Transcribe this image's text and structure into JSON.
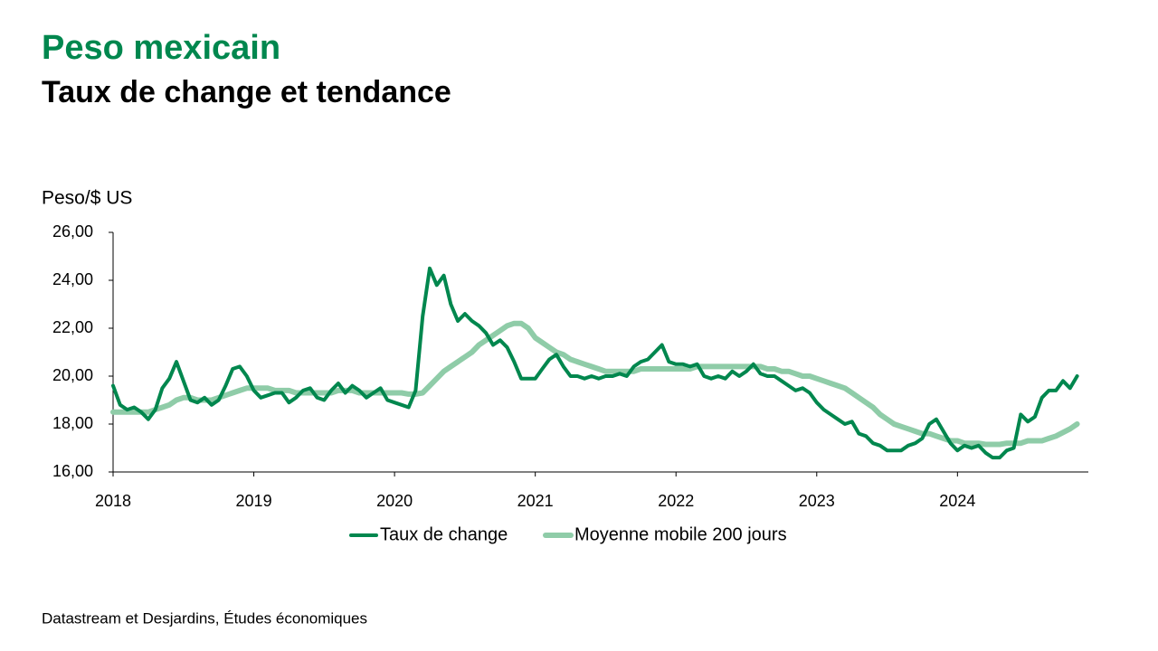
{
  "chart_data": {
    "type": "line",
    "title": "Peso mexicain",
    "subtitle": "Taux de change et tendance",
    "y_label": "Peso/$ US",
    "source": "Datastream et Desjardins, Études économiques",
    "legend": "bottom",
    "grid": false,
    "xlim": [
      2018,
      2024.93
    ],
    "xticks": [
      2018,
      2019,
      2020,
      2021,
      2022,
      2023,
      2024
    ],
    "ylim": [
      16,
      26
    ],
    "yticks": [
      {
        "value": 16,
        "label": "16,00"
      },
      {
        "value": 18,
        "label": "18,00"
      },
      {
        "value": 20,
        "label": "20,00"
      },
      {
        "value": 22,
        "label": "22,00"
      },
      {
        "value": 24,
        "label": "24,00"
      },
      {
        "value": 26,
        "label": "26,00"
      }
    ],
    "x": [
      2018.0,
      2018.05,
      2018.1,
      2018.15,
      2018.2,
      2018.25,
      2018.3,
      2018.35,
      2018.4,
      2018.45,
      2018.5,
      2018.55,
      2018.6,
      2018.65,
      2018.7,
      2018.75,
      2018.8,
      2018.85,
      2018.9,
      2018.95,
      2019.0,
      2019.05,
      2019.1,
      2019.15,
      2019.2,
      2019.25,
      2019.3,
      2019.35,
      2019.4,
      2019.45,
      2019.5,
      2019.55,
      2019.6,
      2019.65,
      2019.7,
      2019.75,
      2019.8,
      2019.85,
      2019.9,
      2019.95,
      2020.0,
      2020.05,
      2020.1,
      2020.15,
      2020.2,
      2020.25,
      2020.3,
      2020.35,
      2020.4,
      2020.45,
      2020.5,
      2020.55,
      2020.6,
      2020.65,
      2020.7,
      2020.75,
      2020.8,
      2020.85,
      2020.9,
      2020.95,
      2021.0,
      2021.05,
      2021.1,
      2021.15,
      2021.2,
      2021.25,
      2021.3,
      2021.35,
      2021.4,
      2021.45,
      2021.5,
      2021.55,
      2021.6,
      2021.65,
      2021.7,
      2021.75,
      2021.8,
      2021.85,
      2021.9,
      2021.95,
      2022.0,
      2022.05,
      2022.1,
      2022.15,
      2022.2,
      2022.25,
      2022.3,
      2022.35,
      2022.4,
      2022.45,
      2022.5,
      2022.55,
      2022.6,
      2022.65,
      2022.7,
      2022.75,
      2022.8,
      2022.85,
      2022.9,
      2022.95,
      2023.0,
      2023.05,
      2023.1,
      2023.15,
      2023.2,
      2023.25,
      2023.3,
      2023.35,
      2023.4,
      2023.45,
      2023.5,
      2023.55,
      2023.6,
      2023.65,
      2023.7,
      2023.75,
      2023.8,
      2023.85,
      2023.9,
      2023.95,
      2024.0,
      2024.05,
      2024.1,
      2024.15,
      2024.2,
      2024.25,
      2024.3,
      2024.35,
      2024.4,
      2024.45,
      2024.5,
      2024.55,
      2024.6,
      2024.65,
      2024.7,
      2024.75,
      2024.8,
      2024.85
    ],
    "series": [
      {
        "name": "Taux de change",
        "color": "#00874e",
        "width": 4,
        "values": [
          19.6,
          18.8,
          18.6,
          18.7,
          18.5,
          18.2,
          18.6,
          19.5,
          19.9,
          20.6,
          19.8,
          19.0,
          18.9,
          19.1,
          18.8,
          19.0,
          19.6,
          20.3,
          20.4,
          20.0,
          19.4,
          19.1,
          19.2,
          19.3,
          19.3,
          18.9,
          19.1,
          19.4,
          19.5,
          19.1,
          19.0,
          19.4,
          19.7,
          19.3,
          19.6,
          19.4,
          19.1,
          19.3,
          19.5,
          19.0,
          18.9,
          18.8,
          18.7,
          19.4,
          22.5,
          24.5,
          23.8,
          24.2,
          23.0,
          22.3,
          22.6,
          22.3,
          22.1,
          21.8,
          21.3,
          21.5,
          21.2,
          20.6,
          19.9,
          19.9,
          19.9,
          20.3,
          20.7,
          20.9,
          20.4,
          20.0,
          20.0,
          19.9,
          20.0,
          19.9,
          20.0,
          20.0,
          20.1,
          20.0,
          20.4,
          20.6,
          20.7,
          21.0,
          21.3,
          20.6,
          20.5,
          20.5,
          20.4,
          20.5,
          20.0,
          19.9,
          20.0,
          19.9,
          20.2,
          20.0,
          20.2,
          20.5,
          20.1,
          20.0,
          20.0,
          19.8,
          19.6,
          19.4,
          19.5,
          19.3,
          18.9,
          18.6,
          18.4,
          18.2,
          18.0,
          18.1,
          17.6,
          17.5,
          17.2,
          17.1,
          16.9,
          16.9,
          16.9,
          17.1,
          17.2,
          17.4,
          18.0,
          18.2,
          17.7,
          17.2,
          16.9,
          17.1,
          17.0,
          17.1,
          16.8,
          16.6,
          16.6,
          16.9,
          17.0,
          18.4,
          18.1,
          18.3,
          19.1,
          19.4,
          19.4,
          19.8,
          19.5,
          20.0
        ]
      },
      {
        "name": "Moyenne mobile 200 jours",
        "color": "#8fcca8",
        "width": 6,
        "values": [
          18.5,
          18.5,
          18.5,
          18.5,
          18.5,
          18.5,
          18.6,
          18.7,
          18.8,
          19.0,
          19.1,
          19.1,
          19.0,
          19.0,
          19.0,
          19.1,
          19.2,
          19.3,
          19.4,
          19.5,
          19.5,
          19.5,
          19.5,
          19.4,
          19.4,
          19.4,
          19.3,
          19.3,
          19.3,
          19.3,
          19.3,
          19.3,
          19.4,
          19.4,
          19.4,
          19.3,
          19.3,
          19.3,
          19.3,
          19.3,
          19.3,
          19.3,
          19.25,
          19.25,
          19.3,
          19.6,
          19.9,
          20.2,
          20.4,
          20.6,
          20.8,
          21.0,
          21.3,
          21.5,
          21.7,
          21.9,
          22.1,
          22.2,
          22.2,
          22.0,
          21.6,
          21.4,
          21.2,
          21.0,
          20.9,
          20.7,
          20.6,
          20.5,
          20.4,
          20.3,
          20.2,
          20.2,
          20.2,
          20.2,
          20.2,
          20.3,
          20.3,
          20.3,
          20.3,
          20.3,
          20.3,
          20.3,
          20.3,
          20.4,
          20.4,
          20.4,
          20.4,
          20.4,
          20.4,
          20.4,
          20.4,
          20.4,
          20.4,
          20.3,
          20.3,
          20.2,
          20.2,
          20.1,
          20.0,
          20.0,
          19.9,
          19.8,
          19.7,
          19.6,
          19.5,
          19.3,
          19.1,
          18.9,
          18.7,
          18.4,
          18.2,
          18.0,
          17.9,
          17.8,
          17.7,
          17.6,
          17.6,
          17.5,
          17.4,
          17.3,
          17.3,
          17.2,
          17.2,
          17.2,
          17.15,
          17.15,
          17.15,
          17.2,
          17.2,
          17.2,
          17.3,
          17.3,
          17.3,
          17.4,
          17.5,
          17.65,
          17.8,
          18.0
        ]
      }
    ]
  }
}
